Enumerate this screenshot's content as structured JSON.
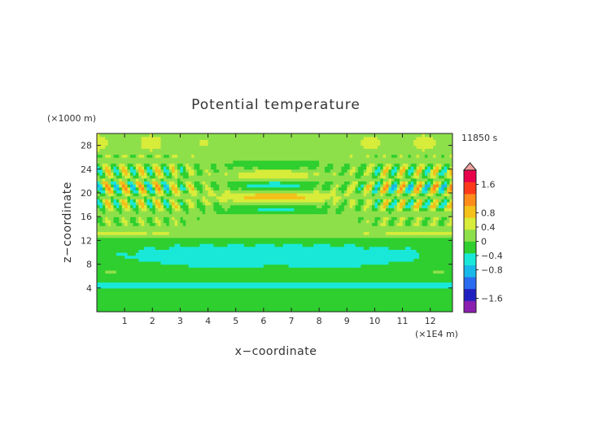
{
  "chart_data": {
    "type": "heatmap",
    "title": "Potential temperature",
    "xlabel": "x−coordinate",
    "ylabel": "z−coordinate",
    "x_unit": "(×1E4 m)",
    "y_unit": "(×1000 m)",
    "time_label": "11850 s",
    "xlim": [
      0,
      12.8
    ],
    "ylim": [
      0,
      30
    ],
    "x_ticks": [
      1,
      2,
      3,
      4,
      5,
      6,
      7,
      8,
      9,
      10,
      11,
      12
    ],
    "y_ticks": [
      4,
      8,
      12,
      16,
      20,
      24,
      28
    ],
    "colorbar": {
      "range": [
        -2.0,
        2.0
      ],
      "ticks": [
        1.6,
        0.8,
        0.4,
        0,
        -0.4,
        -0.8,
        -1.6
      ],
      "tick_labels": [
        "1.6",
        "0.8",
        "0.4",
        "0",
        "−0.4",
        "−0.8",
        "−1.6"
      ],
      "colors": [
        "#8a1fb0",
        "#2020c0",
        "#2a6cf0",
        "#18b8e8",
        "#19e8d8",
        "#2ecf2e",
        "#8ee04a",
        "#d8ec3a",
        "#f4c01a",
        "#ff8c1a",
        "#ff3a1a",
        "#e8004a"
      ],
      "over_color": "#f0a0a0"
    },
    "grid": false,
    "legend": "right"
  }
}
